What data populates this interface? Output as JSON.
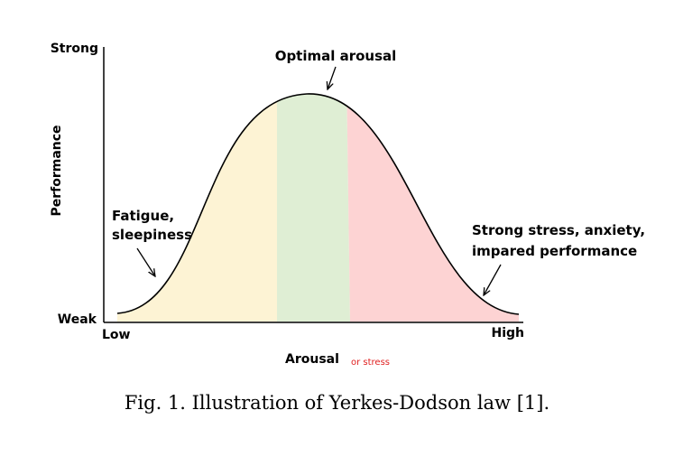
{
  "diagram": {
    "y_top_label": "Strong",
    "y_bottom_label": "Weak",
    "y_axis_title": "Performance",
    "x_left_label": "Low",
    "x_right_label": "High",
    "x_axis_title": "Arousal",
    "x_axis_note": "or stress",
    "peak_annotation": "Optimal arousal",
    "left_annotation": [
      "Fatigue,",
      "sleepiness"
    ],
    "right_annotation": [
      "Strong stress, anxiety,",
      "impared performance"
    ],
    "colors": {
      "low_zone": "#fdf3d4",
      "optimal_zone": "#dfeed4",
      "high_zone": "#fdd3d3",
      "curve": "#000000",
      "note": "#e02020"
    }
  },
  "caption": "Fig. 1.  Illustration of Yerkes-Dodson law [1]."
}
